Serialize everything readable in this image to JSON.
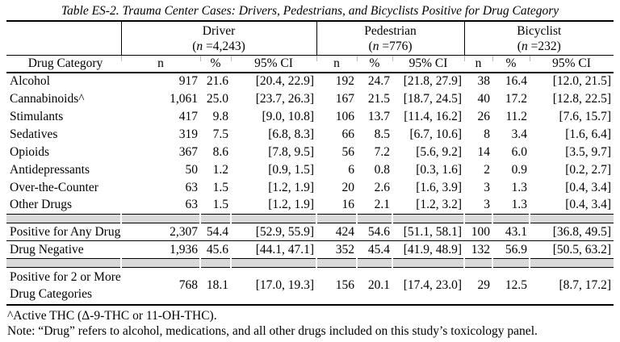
{
  "title": "Table ES-2. Trauma Center Cases: Drivers, Pedestrians, and Bicyclists Positive for Drug Category",
  "table": {
    "groups": [
      {
        "label": "Driver",
        "n_prefix": "(",
        "n_var": "n",
        "n_rest": " =4,243)"
      },
      {
        "label": "Pedestrian",
        "n_prefix": "(",
        "n_var": "n",
        "n_rest": " =776)"
      },
      {
        "label": "Bicyclist",
        "n_prefix": "(",
        "n_var": "n",
        "n_rest": " =232)"
      }
    ],
    "col_headers": {
      "category": "Drug Category",
      "n": "n",
      "pct": "%",
      "ci": "95% CI"
    },
    "drug_rows": [
      {
        "category": "Alcohol",
        "values": [
          "917",
          "21.6",
          "[20.4, 22.9]",
          "192",
          "24.7",
          "[21.8, 27.9]",
          "38",
          "16.4",
          "[12.0, 21.5]"
        ]
      },
      {
        "category": "Cannabinoids^",
        "values": [
          "1,061",
          "25.0",
          "[23.7, 26.3]",
          "167",
          "21.5",
          "[18.7, 24.5]",
          "40",
          "17.2",
          "[12.8, 22.5]"
        ]
      },
      {
        "category": "Stimulants",
        "values": [
          "417",
          "9.8",
          "[9.0, 10.8]",
          "106",
          "13.7",
          "[11.4, 16.2]",
          "26",
          "11.2",
          "[7.6, 15.7]"
        ]
      },
      {
        "category": "Sedatives",
        "values": [
          "319",
          "7.5",
          "[6.8, 8.3]",
          "66",
          "8.5",
          "[6.7, 10.6]",
          "8",
          "3.4",
          "[1.6, 6.4]"
        ]
      },
      {
        "category": "Opioids",
        "values": [
          "367",
          "8.6",
          "[7.8, 9.5]",
          "56",
          "7.2",
          "[5.6, 9.2]",
          "14",
          "6.0",
          "[3.5, 9.7]"
        ]
      },
      {
        "category": "Antidepressants",
        "values": [
          "50",
          "1.2",
          "[0.9, 1.5]",
          "6",
          "0.8",
          "[0.3, 1.6]",
          "2",
          "0.9",
          "[0.2, 2.7]"
        ]
      },
      {
        "category": "Over-the-Counter",
        "values": [
          "63",
          "1.5",
          "[1.2, 1.9]",
          "20",
          "2.6",
          "[1.6, 3.9]",
          "3",
          "1.3",
          "[0.4, 3.4]"
        ]
      },
      {
        "category": "Other Drugs",
        "values": [
          "63",
          "1.5",
          "[1.2, 1.9]",
          "16",
          "2.1",
          "[1.2, 3.2]",
          "3",
          "1.3",
          "[0.4, 3.4]"
        ]
      }
    ],
    "summary_rows_1": [
      {
        "category": "Positive for Any Drug",
        "values": [
          "2,307",
          "54.4",
          "[52.9, 55.9]",
          "424",
          "54.6",
          "[51.1, 58.1]",
          "100",
          "43.1",
          "[36.8, 49.5]"
        ]
      },
      {
        "category": "Drug Negative",
        "values": [
          "1,936",
          "45.6",
          "[44.1, 47.1]",
          "352",
          "45.4",
          "[41.9, 48.9]",
          "132",
          "56.9",
          "[50.5, 63.2]"
        ]
      }
    ],
    "summary_rows_2": [
      {
        "category": "Positive for 2 or More\nDrug Categories",
        "values": [
          "768",
          "18.1",
          "[17.0, 19.3]",
          "156",
          "20.1",
          "[17.4, 23.0]",
          "29",
          "12.5",
          "[8.7, 17.2]"
        ]
      }
    ]
  },
  "footnotes": [
    "^Active THC (Δ-9-THC or 11-OH-THC).",
    "Note: “Drug” refers to alcohol, medications, and all other drugs included on this study’s toxicology panel."
  ],
  "colors": {
    "background": "#ffffff",
    "text": "#000000",
    "rule": "#000000",
    "band": "#d9d9d9"
  }
}
